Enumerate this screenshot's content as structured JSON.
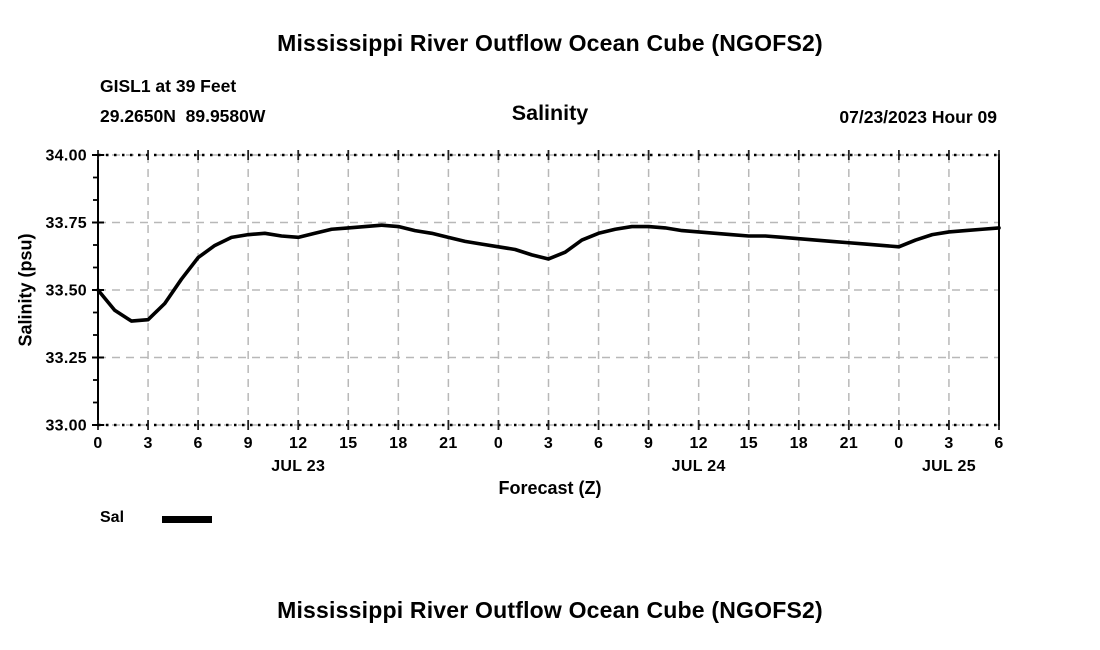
{
  "page": {
    "top_title": "Mississippi River Outflow Ocean Cube (NGOFS2)",
    "bottom_title": "Mississippi River Outflow Ocean Cube (NGOFS2)"
  },
  "header": {
    "station_name": "GISL1 at 39 Feet",
    "station_coords": "29.2650N  89.9580W",
    "subtitle": "Salinity",
    "datetime": "07/23/2023 Hour 09"
  },
  "legend": {
    "label": "Sal",
    "swatch_color": "#000000"
  },
  "chart_data": {
    "type": "line",
    "title": "Salinity",
    "xlabel": "Forecast (Z)",
    "ylabel": "Salinity (psu)",
    "ylim": [
      33.0,
      34.0
    ],
    "xlim_hours": [
      0,
      54
    ],
    "grid": true,
    "legend_position": "bottom-left",
    "y_tick_values": [
      34.0,
      33.75,
      33.5,
      33.25,
      33.0
    ],
    "y_tick_labels": [
      "34.00",
      "33.75",
      "33.50",
      "33.25",
      "33.00"
    ],
    "y_minor_ticks_per_interval": 2,
    "x_tick_hours": [
      0,
      3,
      6,
      9,
      12,
      15,
      18,
      21,
      24,
      27,
      30,
      33,
      36,
      39,
      42,
      45,
      48,
      51,
      54
    ],
    "x_tick_labels": [
      "0",
      "3",
      "6",
      "9",
      "12",
      "15",
      "18",
      "21",
      "0",
      "3",
      "6",
      "9",
      "12",
      "15",
      "18",
      "21",
      "0",
      "3",
      "6"
    ],
    "day_labels": [
      {
        "label": "JUL 23",
        "hour": 12
      },
      {
        "label": "JUL 24",
        "hour": 36
      },
      {
        "label": "JUL 25",
        "hour": 51
      }
    ],
    "series": [
      {
        "name": "Sal",
        "color": "#000000",
        "x": [
          0,
          1,
          2,
          3,
          4,
          5,
          6,
          7,
          8,
          9,
          10,
          11,
          12,
          13,
          14,
          15,
          16,
          17,
          18,
          19,
          20,
          21,
          22,
          23,
          24,
          25,
          26,
          27,
          28,
          29,
          30,
          31,
          32,
          33,
          34,
          35,
          36,
          37,
          38,
          39,
          40,
          41,
          42,
          43,
          44,
          45,
          46,
          47,
          48,
          49,
          50,
          51,
          52,
          53,
          54
        ],
        "values": [
          33.5,
          33.425,
          33.385,
          33.39,
          33.45,
          33.54,
          33.62,
          33.665,
          33.695,
          33.705,
          33.71,
          33.7,
          33.695,
          33.71,
          33.725,
          33.73,
          33.735,
          33.74,
          33.735,
          33.72,
          33.71,
          33.695,
          33.68,
          33.67,
          33.66,
          33.65,
          33.63,
          33.615,
          33.64,
          33.685,
          33.71,
          33.725,
          33.735,
          33.735,
          33.73,
          33.72,
          33.715,
          33.71,
          33.705,
          33.7,
          33.7,
          33.695,
          33.69,
          33.685,
          33.68,
          33.675,
          33.67,
          33.665,
          33.66,
          33.685,
          33.705,
          33.715,
          33.72,
          33.725,
          33.73
        ]
      }
    ],
    "colors": {
      "line": "#000000",
      "grid": "#b8b8b8",
      "axis": "#000000",
      "tick": "#222222"
    }
  }
}
